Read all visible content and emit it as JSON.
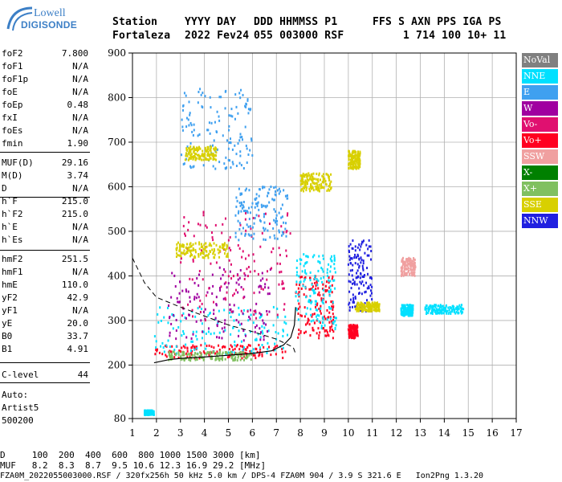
{
  "logo": {
    "line1": "Lowell",
    "line2": "DIGISONDE"
  },
  "header": {
    "row1": [
      "Station",
      "YYYY DAY",
      "DDD HHMMSS P1",
      "FFS S AXN PPS IGA PS"
    ],
    "row2": [
      "Fortaleza",
      "2022 Fev24",
      "055 003000 RSF",
      "1 714 100 10+ 11"
    ]
  },
  "params": [
    {
      "key": "foF2",
      "value": "7.800"
    },
    {
      "key": "foF1",
      "value": "N/A"
    },
    {
      "key": "foF1p",
      "value": "N/A"
    },
    {
      "key": "foE",
      "value": "N/A"
    },
    {
      "key": "foEp",
      "value": "0.48"
    },
    {
      "key": "fxI",
      "value": "N/A"
    },
    {
      "key": "foEs",
      "value": "N/A"
    },
    {
      "key": "fmin",
      "value": "1.90"
    },
    {
      "key": "MUF(D)",
      "value": "29.16"
    },
    {
      "key": "M(D)",
      "value": "3.74"
    },
    {
      "key": "D",
      "value": "N/A"
    },
    {
      "key": "h`F",
      "value": "215.0"
    },
    {
      "key": "h`F2",
      "value": "215.0"
    },
    {
      "key": "h`E",
      "value": "N/A"
    },
    {
      "key": "h`Es",
      "value": "N/A"
    },
    {
      "key": "hmF2",
      "value": "251.5"
    },
    {
      "key": "hmF1",
      "value": "N/A"
    },
    {
      "key": "hmE",
      "value": "110.0"
    },
    {
      "key": "yF2",
      "value": "42.9"
    },
    {
      "key": "yF1",
      "value": "N/A"
    },
    {
      "key": "yE",
      "value": "20.0"
    },
    {
      "key": "B0",
      "value": "33.7"
    },
    {
      "key": "B1",
      "value": "4.91"
    },
    {
      "key": "C-level",
      "value": "44"
    }
  ],
  "autoscale": {
    "line1": "Auto:",
    "line2": "Artist5",
    "line3": "500200"
  },
  "legend": [
    {
      "label": "NoVal",
      "color": "#808080"
    },
    {
      "label": "NNE",
      "color": "#00e0ff"
    },
    {
      "label": "E",
      "color": "#3fa0f0"
    },
    {
      "label": "W",
      "color": "#a000a0"
    },
    {
      "label": "Vo-",
      "color": "#e01070"
    },
    {
      "label": "Vo+",
      "color": "#ff0020"
    },
    {
      "label": "SSW",
      "color": "#f0a0a0"
    },
    {
      "label": "X-",
      "color": "#008000"
    },
    {
      "label": "X+",
      "color": "#80c060"
    },
    {
      "label": "SSE",
      "color": "#d8d000"
    },
    {
      "label": "NNW",
      "color": "#2020e0"
    }
  ],
  "bottom": {
    "row_d": "D     100  200  400  600  800 1000 1500 3000 [km]",
    "row_muf": "MUF   8.2  8.3  8.7  9.5 10.6 12.3 16.9 29.2 [MHz]",
    "footer": "FZA0M_2022055003000.RSF / 320fx256h 50 kHz 5.0 km / DPS-4 FZA0M 904 / 3.9 S 321.6 E   Ion2Png 1.3.20"
  },
  "chart_data": {
    "type": "scatter",
    "xlim": [
      1,
      17
    ],
    "ylim": [
      80,
      900
    ],
    "x_ticks": [
      1,
      2,
      3,
      4,
      5,
      6,
      7,
      8,
      9,
      10,
      11,
      12,
      13,
      14,
      15,
      16,
      17
    ],
    "y_ticks": [
      80,
      200,
      300,
      400,
      500,
      600,
      700,
      800,
      900
    ],
    "grid": true,
    "legend_position": "right",
    "profile_curve": [
      [
        1.9,
        205
      ],
      [
        2.5,
        212
      ],
      [
        3,
        215
      ],
      [
        4,
        218
      ],
      [
        5,
        222
      ],
      [
        6,
        226
      ],
      [
        6.8,
        232
      ],
      [
        7.3,
        245
      ],
      [
        7.6,
        262
      ],
      [
        7.75,
        290
      ],
      [
        7.8,
        330
      ]
    ],
    "dashed_curve": [
      [
        1,
        440
      ],
      [
        1.5,
        385
      ],
      [
        2,
        352
      ],
      [
        3,
        330
      ],
      [
        4,
        310
      ],
      [
        5,
        290
      ],
      [
        6,
        275
      ],
      [
        7,
        258
      ],
      [
        7.7,
        240
      ],
      [
        7.8,
        225
      ]
    ],
    "clusters": [
      {
        "component": "Vo+",
        "x": [
          1.9,
          7.4
        ],
        "y": [
          215,
          245
        ]
      },
      {
        "component": "NNE",
        "x": [
          1.9,
          7.5
        ],
        "y": [
          225,
          330
        ]
      },
      {
        "component": "W",
        "x": [
          2.5,
          6.8
        ],
        "y": [
          255,
          420
        ]
      },
      {
        "component": "Vo-",
        "x": [
          3,
          7.6
        ],
        "y": [
          300,
          550
        ]
      },
      {
        "component": "E",
        "x": [
          3,
          6
        ],
        "y": [
          640,
          820
        ]
      },
      {
        "component": "SSE",
        "x": [
          3.2,
          4.5
        ],
        "y": [
          660,
          690
        ]
      },
      {
        "component": "SSE",
        "x": [
          2.8,
          5
        ],
        "y": [
          440,
          475
        ]
      },
      {
        "component": "E",
        "x": [
          5.3,
          7.5
        ],
        "y": [
          480,
          600
        ]
      },
      {
        "component": "Vo+",
        "x": [
          7.8,
          9.4
        ],
        "y": [
          260,
          400
        ]
      },
      {
        "component": "NNE",
        "x": [
          7.8,
          9.5
        ],
        "y": [
          280,
          450
        ]
      },
      {
        "component": "NNW",
        "x": [
          10,
          11
        ],
        "y": [
          320,
          480
        ]
      },
      {
        "component": "Vo+",
        "x": [
          10,
          10.4
        ],
        "y": [
          260,
          290
        ]
      },
      {
        "component": "SSE",
        "x": [
          10.3,
          11.3
        ],
        "y": [
          320,
          340
        ]
      },
      {
        "component": "SSE",
        "x": [
          8,
          9.3
        ],
        "y": [
          590,
          630
        ]
      },
      {
        "component": "NNE",
        "x": [
          12.2,
          12.7
        ],
        "y": [
          310,
          335
        ]
      },
      {
        "component": "NNE",
        "x": [
          13.2,
          14.8
        ],
        "y": [
          315,
          335
        ]
      },
      {
        "component": "SSW",
        "x": [
          12.2,
          12.8
        ],
        "y": [
          400,
          440
        ]
      },
      {
        "component": "SSE",
        "x": [
          10,
          10.5
        ],
        "y": [
          640,
          680
        ]
      },
      {
        "component": "X+",
        "x": [
          2.5,
          6
        ],
        "y": [
          210,
          230
        ]
      },
      {
        "component": "NNE",
        "x": [
          1.5,
          1.9
        ],
        "y": [
          88,
          98
        ]
      }
    ]
  }
}
